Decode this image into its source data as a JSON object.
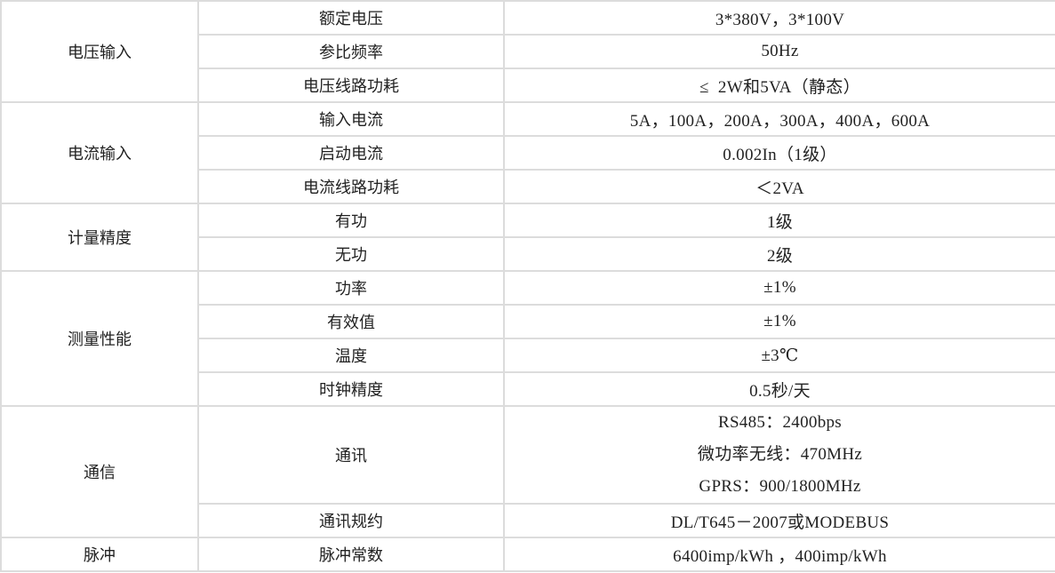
{
  "groups": [
    {
      "name": "电压输入",
      "rows": [
        {
          "param": "额定电压",
          "value": "3*380V，3*100V"
        },
        {
          "param": "参比频率",
          "value": "50Hz"
        },
        {
          "param": "电压线路功耗",
          "value": "≤  2W和5VA（静态）"
        }
      ]
    },
    {
      "name": "电流输入",
      "rows": [
        {
          "param": "输入电流",
          "value": "5A，100A，200A，300A，400A，600A"
        },
        {
          "param": "启动电流",
          "value": "0.002In（1级）"
        },
        {
          "param": "电流线路功耗",
          "value": "＜2VA"
        }
      ]
    },
    {
      "name": "计量精度",
      "rows": [
        {
          "param": "有功",
          "value": "1级"
        },
        {
          "param": "无功",
          "value": "2级"
        }
      ]
    },
    {
      "name": "测量性能",
      "rows": [
        {
          "param": "功率",
          "value": "±1%"
        },
        {
          "param": "有效值",
          "value": "±1%"
        },
        {
          "param": "温度",
          "value": "±3℃"
        },
        {
          "param": "时钟精度",
          "value": "0.5秒/天"
        }
      ]
    },
    {
      "name": "通信",
      "rows": [
        {
          "param": "通讯",
          "values": [
            "RS485：2400bps",
            "微功率无线：470MHz",
            "GPRS：900/1800MHz"
          ]
        },
        {
          "param": "通讯规约",
          "value": "DL/T645－2007或MODEBUS"
        }
      ]
    },
    {
      "name": "脉冲",
      "rows": [
        {
          "param": "脉冲常数",
          "value": "6400imp/kWh ，400imp/kWh"
        }
      ]
    }
  ]
}
